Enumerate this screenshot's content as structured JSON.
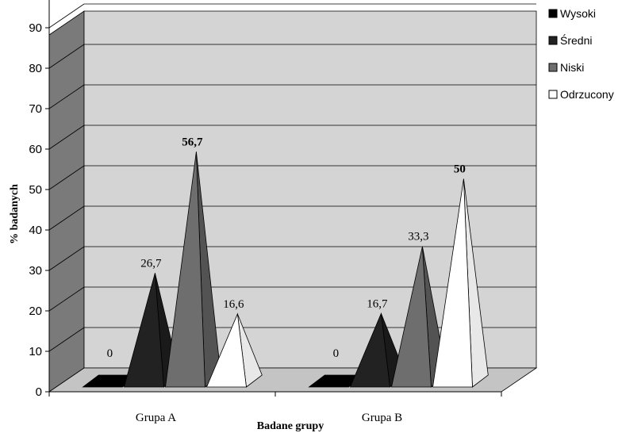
{
  "chart_data": {
    "type": "bar",
    "style": "3d-pyramid",
    "categories": [
      "Grupa A",
      "Grupa B"
    ],
    "series": [
      {
        "name": "Wysoki",
        "values": [
          0,
          0
        ],
        "color": "#000000"
      },
      {
        "name": "Średni",
        "values": [
          26.7,
          16.7
        ],
        "color": "#222222"
      },
      {
        "name": "Niski",
        "values": [
          56.7,
          33.3
        ],
        "color": "#6e6e6e"
      },
      {
        "name": "Odrzucony",
        "values": [
          16.6,
          50
        ],
        "color": "#ffffff"
      }
    ],
    "data_labels": [
      [
        "0",
        "0"
      ],
      [
        "26,7",
        "16,7"
      ],
      [
        "56,7",
        "33,3"
      ],
      [
        "16,6",
        "50"
      ]
    ],
    "bold_labels": [
      [
        false,
        false
      ],
      [
        false,
        false
      ],
      [
        true,
        false
      ],
      [
        false,
        true
      ]
    ],
    "xlabel": "Badane grupy",
    "ylabel": "% badanych",
    "ylim": [
      0,
      100
    ],
    "yticks": [
      "0",
      "10",
      "20",
      "30",
      "40",
      "50",
      "60",
      "70",
      "80",
      "90",
      "100"
    ],
    "grid": true,
    "legend_position": "right",
    "wall_color": "#d4d4d4",
    "side_wall_color": "#7a7a7a",
    "floor_color": "#c4c4c4"
  }
}
